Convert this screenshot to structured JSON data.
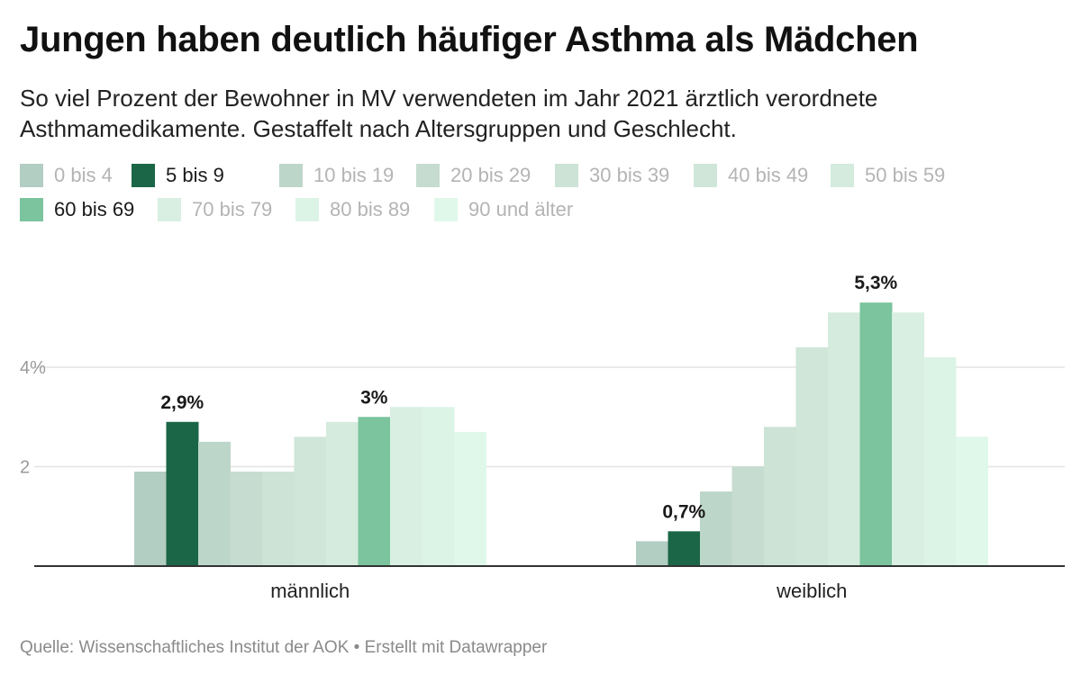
{
  "chart_data": {
    "type": "bar",
    "title": "Jungen haben deutlich häufiger Asthma als Mädchen",
    "subtitle": "So viel Prozent der Bewohner in MV verwendeten im Jahr 2021 ärztlich verordnete Asthmamedikamente. Gestaffelt nach Altersgruppen und Geschlecht.",
    "categories": [
      "männlich",
      "weiblich"
    ],
    "series": [
      {
        "name": "0 bis 4",
        "color": "#b2cdc2",
        "values": [
          1.9,
          0.5
        ]
      },
      {
        "name": "5 bis 9",
        "color": "#1b6647",
        "values": [
          2.9,
          0.7
        ]
      },
      {
        "name": "10 bis 19",
        "color": "#bdd6ca",
        "values": [
          2.5,
          1.5
        ]
      },
      {
        "name": "20 bis 29",
        "color": "#c6dcd1",
        "values": [
          1.9,
          2.0
        ]
      },
      {
        "name": "30 bis 39",
        "color": "#cce3d6",
        "values": [
          1.9,
          2.8
        ]
      },
      {
        "name": "40 bis 49",
        "color": "#cfe6d8",
        "values": [
          2.6,
          4.4
        ]
      },
      {
        "name": "50 bis 59",
        "color": "#d4ebdd",
        "values": [
          2.9,
          5.1
        ]
      },
      {
        "name": "60 bis 69",
        "color": "#7bc49d",
        "values": [
          3.0,
          5.3
        ]
      },
      {
        "name": "70 bis 79",
        "color": "#d8efe2",
        "values": [
          3.2,
          5.1
        ]
      },
      {
        "name": "80 bis 89",
        "color": "#dcf4e6",
        "values": [
          3.2,
          4.2
        ]
      },
      {
        "name": "90 und älter",
        "color": "#e0f8ea",
        "values": [
          2.7,
          2.6
        ]
      }
    ],
    "highlighted_series": [
      "5 bis 9",
      "60 bis 69"
    ],
    "value_labels": [
      {
        "series": "5 bis 9",
        "category": "männlich",
        "text": "2,9%"
      },
      {
        "series": "60 bis 69",
        "category": "männlich",
        "text": "3%"
      },
      {
        "series": "5 bis 9",
        "category": "weiblich",
        "text": "0,7%"
      },
      {
        "series": "60 bis 69",
        "category": "weiblich",
        "text": "5,3%"
      }
    ],
    "yticks": [
      {
        "value": 2,
        "label": "2"
      },
      {
        "value": 4,
        "label": "4%"
      }
    ],
    "ylim": [
      0,
      5.3
    ],
    "grid": true,
    "legend_position": "top-left",
    "xlabel": "",
    "ylabel": ""
  },
  "source": "Quelle: Wissenschaftliches Institut der AOK • Erstellt mit Datawrapper"
}
